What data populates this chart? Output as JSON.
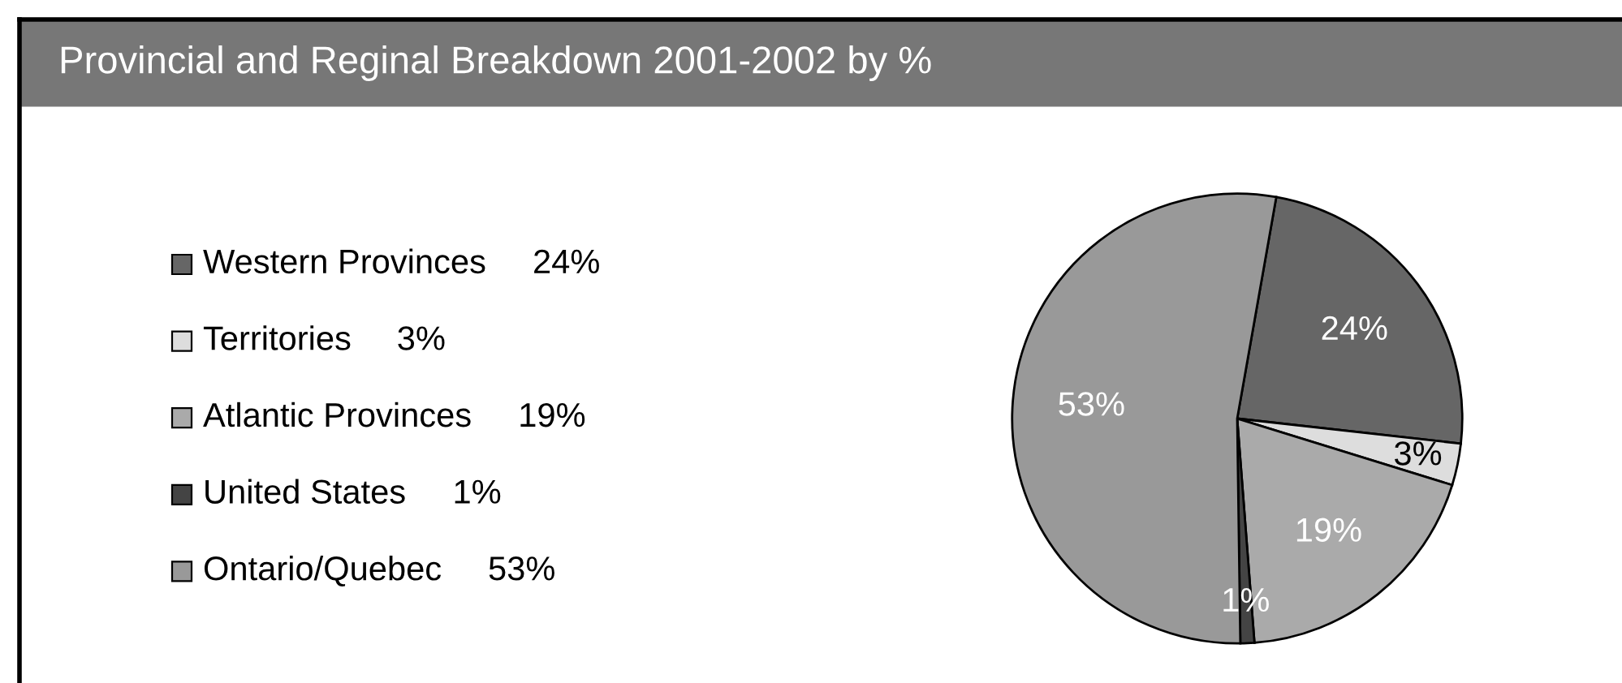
{
  "chart_data": {
    "type": "pie",
    "title": "Provincial and Reginal Breakdown 2001-2002 by %",
    "categories": [
      "Western Provinces",
      "Territories",
      "Atlantic Provinces",
      "United States",
      "Ontario/Quebec"
    ],
    "values": [
      24,
      3,
      19,
      1,
      53
    ],
    "colors": [
      "#666666",
      "#dddddd",
      "#aaaaaa",
      "#444444",
      "#999999"
    ],
    "value_labels": [
      "24%",
      "3%",
      "19%",
      "1%",
      "53%"
    ],
    "legend": "left"
  }
}
